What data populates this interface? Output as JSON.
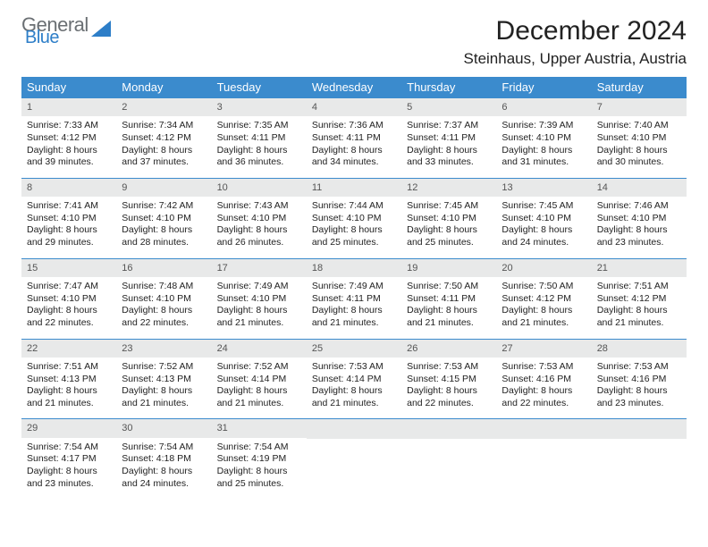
{
  "brand": {
    "line1": "General",
    "line2": "Blue"
  },
  "title": "December 2024",
  "subtitle": "Steinhaus, Upper Austria, Austria",
  "daysOfWeek": [
    "Sunday",
    "Monday",
    "Tuesday",
    "Wednesday",
    "Thursday",
    "Friday",
    "Saturday"
  ],
  "labels": {
    "sunrise": "Sunrise: ",
    "sunset": "Sunset: ",
    "daylight": "Daylight: "
  },
  "colors": {
    "headerBg": "#3b8bcd",
    "headerFg": "#ffffff",
    "dayBg": "#e8e9e9",
    "rule": "#3b8bcd",
    "text": "#222222",
    "muted": "#6a6f73"
  },
  "weeks": [
    [
      {
        "n": "1",
        "sr": "7:33 AM",
        "ss": "4:12 PM",
        "dl": "8 hours and 39 minutes."
      },
      {
        "n": "2",
        "sr": "7:34 AM",
        "ss": "4:12 PM",
        "dl": "8 hours and 37 minutes."
      },
      {
        "n": "3",
        "sr": "7:35 AM",
        "ss": "4:11 PM",
        "dl": "8 hours and 36 minutes."
      },
      {
        "n": "4",
        "sr": "7:36 AM",
        "ss": "4:11 PM",
        "dl": "8 hours and 34 minutes."
      },
      {
        "n": "5",
        "sr": "7:37 AM",
        "ss": "4:11 PM",
        "dl": "8 hours and 33 minutes."
      },
      {
        "n": "6",
        "sr": "7:39 AM",
        "ss": "4:10 PM",
        "dl": "8 hours and 31 minutes."
      },
      {
        "n": "7",
        "sr": "7:40 AM",
        "ss": "4:10 PM",
        "dl": "8 hours and 30 minutes."
      }
    ],
    [
      {
        "n": "8",
        "sr": "7:41 AM",
        "ss": "4:10 PM",
        "dl": "8 hours and 29 minutes."
      },
      {
        "n": "9",
        "sr": "7:42 AM",
        "ss": "4:10 PM",
        "dl": "8 hours and 28 minutes."
      },
      {
        "n": "10",
        "sr": "7:43 AM",
        "ss": "4:10 PM",
        "dl": "8 hours and 26 minutes."
      },
      {
        "n": "11",
        "sr": "7:44 AM",
        "ss": "4:10 PM",
        "dl": "8 hours and 25 minutes."
      },
      {
        "n": "12",
        "sr": "7:45 AM",
        "ss": "4:10 PM",
        "dl": "8 hours and 25 minutes."
      },
      {
        "n": "13",
        "sr": "7:45 AM",
        "ss": "4:10 PM",
        "dl": "8 hours and 24 minutes."
      },
      {
        "n": "14",
        "sr": "7:46 AM",
        "ss": "4:10 PM",
        "dl": "8 hours and 23 minutes."
      }
    ],
    [
      {
        "n": "15",
        "sr": "7:47 AM",
        "ss": "4:10 PM",
        "dl": "8 hours and 22 minutes."
      },
      {
        "n": "16",
        "sr": "7:48 AM",
        "ss": "4:10 PM",
        "dl": "8 hours and 22 minutes."
      },
      {
        "n": "17",
        "sr": "7:49 AM",
        "ss": "4:10 PM",
        "dl": "8 hours and 21 minutes."
      },
      {
        "n": "18",
        "sr": "7:49 AM",
        "ss": "4:11 PM",
        "dl": "8 hours and 21 minutes."
      },
      {
        "n": "19",
        "sr": "7:50 AM",
        "ss": "4:11 PM",
        "dl": "8 hours and 21 minutes."
      },
      {
        "n": "20",
        "sr": "7:50 AM",
        "ss": "4:12 PM",
        "dl": "8 hours and 21 minutes."
      },
      {
        "n": "21",
        "sr": "7:51 AM",
        "ss": "4:12 PM",
        "dl": "8 hours and 21 minutes."
      }
    ],
    [
      {
        "n": "22",
        "sr": "7:51 AM",
        "ss": "4:13 PM",
        "dl": "8 hours and 21 minutes."
      },
      {
        "n": "23",
        "sr": "7:52 AM",
        "ss": "4:13 PM",
        "dl": "8 hours and 21 minutes."
      },
      {
        "n": "24",
        "sr": "7:52 AM",
        "ss": "4:14 PM",
        "dl": "8 hours and 21 minutes."
      },
      {
        "n": "25",
        "sr": "7:53 AM",
        "ss": "4:14 PM",
        "dl": "8 hours and 21 minutes."
      },
      {
        "n": "26",
        "sr": "7:53 AM",
        "ss": "4:15 PM",
        "dl": "8 hours and 22 minutes."
      },
      {
        "n": "27",
        "sr": "7:53 AM",
        "ss": "4:16 PM",
        "dl": "8 hours and 22 minutes."
      },
      {
        "n": "28",
        "sr": "7:53 AM",
        "ss": "4:16 PM",
        "dl": "8 hours and 23 minutes."
      }
    ],
    [
      {
        "n": "29",
        "sr": "7:54 AM",
        "ss": "4:17 PM",
        "dl": "8 hours and 23 minutes."
      },
      {
        "n": "30",
        "sr": "7:54 AM",
        "ss": "4:18 PM",
        "dl": "8 hours and 24 minutes."
      },
      {
        "n": "31",
        "sr": "7:54 AM",
        "ss": "4:19 PM",
        "dl": "8 hours and 25 minutes."
      },
      {
        "empty": true
      },
      {
        "empty": true
      },
      {
        "empty": true
      },
      {
        "empty": true
      }
    ]
  ]
}
